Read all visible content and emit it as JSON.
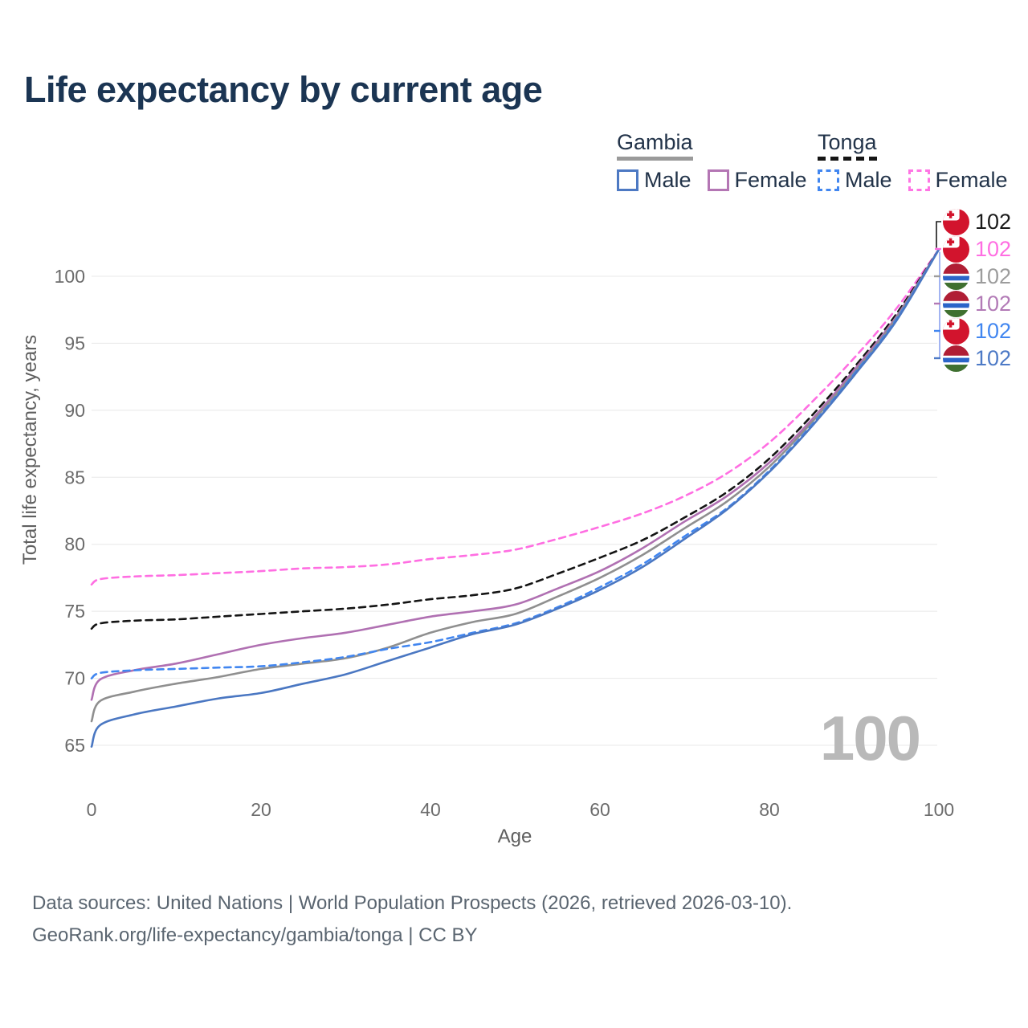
{
  "page": {
    "title": "Life expectancy by current age"
  },
  "legend": {
    "gambia": {
      "title": "Gambia",
      "male": "Male",
      "female": "Female",
      "male_color": "#4d79c3",
      "female_color": "#b476b4",
      "underline_color": "#9a9a9a"
    },
    "tonga": {
      "title": "Tonga",
      "male": "Male",
      "female": "Female",
      "male_color": "#4186f0",
      "female_color": "#ff74e4",
      "underline_color": "#151515"
    }
  },
  "watermark": "100",
  "footer": {
    "line1": "Data sources: United Nations | World Population Prospects (2026, retrieved 2026-03-10).",
    "line2": "GeoRank.org/life-expectancy/gambia/tonga | CC BY"
  },
  "chart_data": {
    "type": "line",
    "title": "Life expectancy by current age",
    "xlabel": "Age",
    "ylabel": "Total life expectancy, years",
    "xlim": [
      0,
      100
    ],
    "ylim": [
      65,
      100
    ],
    "grid": "horizontal",
    "x_ticks": [
      0,
      20,
      40,
      60,
      80,
      100
    ],
    "y_ticks": [
      65,
      70,
      75,
      80,
      85,
      90,
      95,
      100
    ],
    "ages": [
      0,
      1,
      5,
      10,
      15,
      20,
      25,
      30,
      35,
      40,
      45,
      50,
      55,
      60,
      65,
      70,
      75,
      80,
      85,
      90,
      95,
      100
    ],
    "series": [
      {
        "id": "tonga-female",
        "name": "Tonga Female",
        "color": "#ff6ee2",
        "style": "dashed",
        "values": [
          77.0,
          77.4,
          77.6,
          77.7,
          77.85,
          78.0,
          78.2,
          78.3,
          78.5,
          78.9,
          79.2,
          79.6,
          80.4,
          81.3,
          82.3,
          83.6,
          85.3,
          87.6,
          90.6,
          93.9,
          97.6,
          102
        ]
      },
      {
        "id": "tonga-all",
        "name": "Tonga",
        "color": "#141414",
        "style": "dashed",
        "values": [
          73.7,
          74.1,
          74.3,
          74.4,
          74.6,
          74.8,
          75.0,
          75.2,
          75.5,
          75.9,
          76.2,
          76.7,
          77.8,
          79.0,
          80.3,
          82.0,
          83.9,
          86.4,
          89.6,
          93.2,
          97.2,
          102
        ]
      },
      {
        "id": "gambia-female",
        "name": "Gambia Female",
        "color": "#b070b2",
        "style": "solid",
        "values": [
          68.4,
          69.9,
          70.6,
          71.1,
          71.8,
          72.5,
          73.0,
          73.4,
          74.0,
          74.6,
          75.0,
          75.5,
          76.7,
          78.0,
          79.7,
          81.7,
          83.6,
          86.1,
          89.3,
          93.0,
          97.0,
          102
        ]
      },
      {
        "id": "gambia-all",
        "name": "Gambia",
        "color": "#8f8f8f",
        "style": "solid",
        "values": [
          66.8,
          68.3,
          69.0,
          69.6,
          70.1,
          70.7,
          71.1,
          71.5,
          72.3,
          73.4,
          74.2,
          74.8,
          76.1,
          77.5,
          79.2,
          81.2,
          83.2,
          85.8,
          89.1,
          92.8,
          96.9,
          102
        ]
      },
      {
        "id": "tonga-male",
        "name": "Tonga Male",
        "color": "#4186f0",
        "style": "dashed",
        "values": [
          70.0,
          70.4,
          70.6,
          70.7,
          70.8,
          70.9,
          71.2,
          71.6,
          72.2,
          72.7,
          73.4,
          74.1,
          75.3,
          76.8,
          78.5,
          80.6,
          82.7,
          85.5,
          88.9,
          92.7,
          96.8,
          102
        ]
      },
      {
        "id": "gambia-male",
        "name": "Gambia Male",
        "color": "#4a77c2",
        "style": "solid",
        "values": [
          64.9,
          66.5,
          67.3,
          67.9,
          68.5,
          68.9,
          69.6,
          70.3,
          71.3,
          72.3,
          73.3,
          74.0,
          75.2,
          76.6,
          78.3,
          80.4,
          82.6,
          85.4,
          88.8,
          92.6,
          96.7,
          102
        ]
      }
    ],
    "end_labels": [
      {
        "flag": "tonga",
        "value": "102",
        "color": "#1a1a1a"
      },
      {
        "flag": "tonga",
        "value": "102",
        "color": "#ff6ee2"
      },
      {
        "flag": "gambia",
        "value": "102",
        "color": "#9c9c9c"
      },
      {
        "flag": "gambia",
        "value": "102",
        "color": "#b27ab6"
      },
      {
        "flag": "tonga",
        "value": "102",
        "color": "#4186f0"
      },
      {
        "flag": "gambia",
        "value": "102",
        "color": "#4d7ac6"
      }
    ]
  }
}
